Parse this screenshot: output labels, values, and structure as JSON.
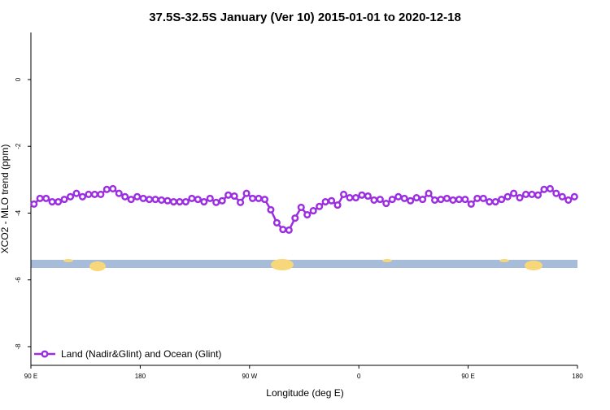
{
  "chart_data": {
    "type": "line",
    "title": "37.5S-32.5S January (Ver 10)   2015-01-01 to 2020-12-18",
    "xlabel": "Longitude (deg E)",
    "ylabel": "XCO2 - MLO trend (ppm)",
    "xlim": [
      90,
      540
    ],
    "ylim": [
      1.41,
      -8.56
    ],
    "xticks": [
      {
        "value": 90,
        "label": "90 E"
      },
      180,
      {
        "value": 270,
        "label": "90 W"
      },
      {
        "value": 360,
        "label": "0"
      },
      {
        "value": 450,
        "label": "90 E"
      },
      {
        "value": 540,
        "label": "180"
      }
    ],
    "yticks": [
      0,
      -2,
      -4,
      -6,
      -8
    ],
    "legend": "lower left",
    "series": [
      {
        "name": "Land (Nadir&Glint) and Ocean (Glint)",
        "color": "#9b2ee0",
        "x": [
          92.5,
          97.5,
          102.5,
          107.5,
          112.5,
          117.5,
          122.5,
          127.5,
          132.5,
          137.5,
          142.5,
          147.5,
          152.5,
          157.5,
          162.5,
          167.5,
          172.5,
          177.5,
          182.5,
          187.5,
          192.5,
          197.5,
          202.5,
          207.5,
          212.5,
          217.5,
          222.5,
          227.5,
          232.5,
          237.5,
          242.5,
          247.5,
          252.5,
          257.5,
          262.5,
          267.5,
          272.5,
          277.5,
          282.5,
          287.5,
          292.5,
          297.5,
          302.5,
          307.5,
          312.5,
          317.5,
          322.5,
          327.5,
          332.5,
          337.5,
          342.5,
          347.5,
          352.5,
          357.5,
          362.5,
          367.5,
          372.5,
          377.5,
          382.5,
          387.5,
          392.5,
          397.5,
          402.5,
          407.5,
          412.5,
          417.5,
          422.5,
          427.5,
          432.5,
          437.5,
          442.5,
          447.5,
          452.5,
          457.5,
          462.5,
          467.5,
          472.5,
          477.5,
          482.5,
          487.5,
          492.5,
          497.5,
          502.5,
          507.5,
          512.5,
          517.5,
          522.5,
          527.5,
          532.5,
          537.5
        ],
        "values": [
          -3.73,
          -3.56,
          -3.56,
          -3.66,
          -3.66,
          -3.59,
          -3.51,
          -3.41,
          -3.51,
          -3.44,
          -3.44,
          -3.44,
          -3.29,
          -3.27,
          -3.41,
          -3.51,
          -3.59,
          -3.51,
          -3.56,
          -3.59,
          -3.59,
          -3.61,
          -3.63,
          -3.66,
          -3.66,
          -3.66,
          -3.56,
          -3.59,
          -3.66,
          -3.56,
          -3.68,
          -3.63,
          -3.46,
          -3.49,
          -3.68,
          -3.41,
          -3.56,
          -3.56,
          -3.59,
          -3.9,
          -4.29,
          -4.49,
          -4.51,
          -4.15,
          -3.83,
          -4.05,
          -3.93,
          -3.8,
          -3.66,
          -3.63,
          -3.76,
          -3.44,
          -3.54,
          -3.54,
          -3.46,
          -3.49,
          -3.61,
          -3.59,
          -3.71,
          -3.59,
          -3.51,
          -3.56,
          -3.63,
          -3.54,
          -3.59,
          -3.41,
          -3.61,
          -3.59,
          -3.56,
          -3.61,
          -3.59,
          -3.59,
          -3.73,
          -3.56,
          -3.56,
          -3.66,
          -3.66,
          -3.59,
          -3.51,
          -3.41,
          -3.54,
          -3.44,
          -3.44,
          -3.46,
          -3.29,
          -3.27,
          -3.41,
          -3.51,
          -3.61,
          -3.51
        ]
      }
    ]
  }
}
